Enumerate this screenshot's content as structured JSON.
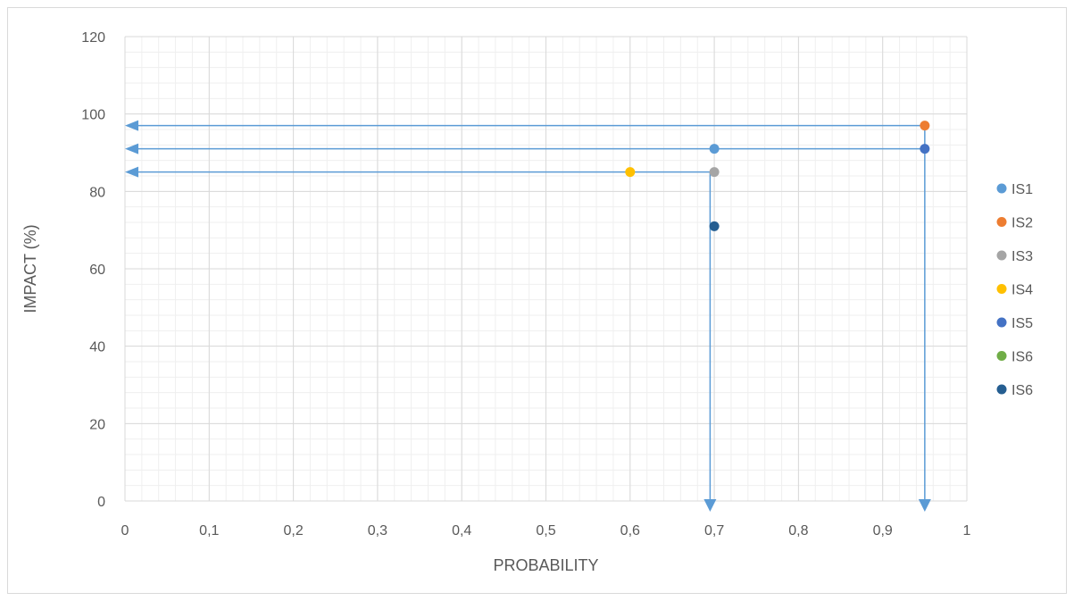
{
  "chart_data": {
    "type": "scatter",
    "title": "",
    "xlabel": "PROBABILITY",
    "ylabel": "IMPACT   (%)",
    "xlim": [
      0,
      1
    ],
    "ylim": [
      0,
      120
    ],
    "x_ticks": [
      "0",
      "0,1",
      "0,2",
      "0,3",
      "0,4",
      "0,5",
      "0,6",
      "0,7",
      "0,8",
      "0,9",
      "1"
    ],
    "x_tick_values": [
      0,
      0.1,
      0.2,
      0.3,
      0.4,
      0.5,
      0.6,
      0.7,
      0.8,
      0.9,
      1
    ],
    "y_ticks": [
      "0",
      "20",
      "40",
      "60",
      "80",
      "100",
      "120"
    ],
    "y_tick_values": [
      0,
      20,
      40,
      60,
      80,
      100,
      120
    ],
    "grid": true,
    "legend_position": "right",
    "series": [
      {
        "name": "IS1",
        "color": "#5B9BD5",
        "points": [
          [
            0.7,
            91
          ]
        ]
      },
      {
        "name": "IS2",
        "color": "#ED7D31",
        "points": [
          [
            0.95,
            97
          ]
        ]
      },
      {
        "name": "IS3",
        "color": "#A5A5A5",
        "points": [
          [
            0.7,
            85
          ]
        ]
      },
      {
        "name": "IS4",
        "color": "#FFC000",
        "points": [
          [
            0.6,
            85
          ]
        ]
      },
      {
        "name": "IS5",
        "color": "#4472C4",
        "points": [
          [
            0.95,
            91
          ]
        ]
      },
      {
        "name": "IS6",
        "color": "#70AD47",
        "points": []
      },
      {
        "name": "IS6",
        "color": "#255E91",
        "points": [
          [
            0.7,
            71
          ]
        ]
      }
    ],
    "annotations": [
      {
        "type": "arrow-h",
        "from": [
          0.95,
          97
        ],
        "to": [
          0,
          97
        ],
        "color": "#5B9BD5"
      },
      {
        "type": "arrow-h",
        "from": [
          0.95,
          91
        ],
        "to": [
          0,
          91
        ],
        "color": "#5B9BD5"
      },
      {
        "type": "arrow-h",
        "from": [
          0.7,
          85
        ],
        "to": [
          0,
          85
        ],
        "color": "#5B9BD5"
      },
      {
        "type": "arrow-v",
        "from": [
          0.695,
          85
        ],
        "to": [
          0.695,
          0
        ],
        "color": "#5B9BD5"
      },
      {
        "type": "arrow-v",
        "from": [
          0.95,
          97
        ],
        "to": [
          0.95,
          0
        ],
        "color": "#5B9BD5"
      }
    ]
  }
}
